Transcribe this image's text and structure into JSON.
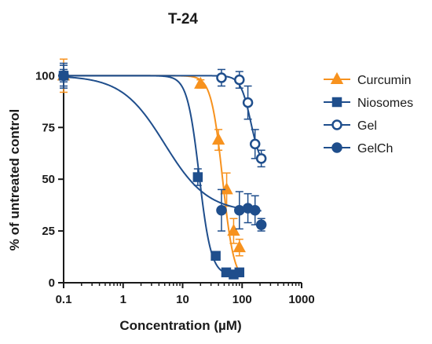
{
  "chart_data": {
    "type": "scatter",
    "title": "T-24",
    "xlabel": "Concentration (µM)",
    "ylabel": "% of untreated control",
    "xscale": "log",
    "xlim": [
      0.1,
      1000
    ],
    "ylim": [
      0,
      110
    ],
    "xticks": [
      0.1,
      1,
      10,
      100,
      1000
    ],
    "xtick_labels": [
      "0.1",
      "1",
      "10",
      "100",
      "1000"
    ],
    "yticks": [
      0,
      25,
      50,
      75,
      100
    ],
    "ytick_labels": [
      "0",
      "25",
      "50",
      "75",
      "100"
    ],
    "legend_position": "right",
    "series": [
      {
        "name": "Curcumin",
        "color": "#f7921e",
        "marker": "triangle",
        "filled": true,
        "x": [
          0.1,
          20,
          40,
          55,
          72,
          90
        ],
        "y": [
          100,
          96,
          69,
          45,
          25,
          17
        ],
        "err": [
          8,
          2,
          5,
          8,
          6,
          4
        ],
        "fit": {
          "top": 100,
          "bottom": 0,
          "ec50": 47,
          "hill": 4.5
        }
      },
      {
        "name": "Niosomes",
        "color": "#1f4e8c",
        "marker": "square",
        "filled": true,
        "x": [
          0.1,
          18,
          36,
          54,
          72,
          90
        ],
        "y": [
          100,
          51,
          13,
          5,
          4,
          5
        ],
        "err": [
          6,
          4,
          1,
          1,
          1,
          1
        ],
        "fit": {
          "top": 100,
          "bottom": 3.5,
          "ec50": 19,
          "hill": 4.3
        }
      },
      {
        "name": "Gel",
        "color": "#1f4e8c",
        "marker": "circle",
        "filled": false,
        "x": [
          0.1,
          45,
          90,
          125,
          165,
          210
        ],
        "y": [
          100,
          99,
          98,
          87,
          67,
          60
        ],
        "err": [
          5,
          4,
          4,
          8,
          7,
          4
        ],
        "fit": {
          "top": 100,
          "bottom": 55,
          "ec50": 140,
          "hill": 5
        }
      },
      {
        "name": "GelCh",
        "color": "#1f4e8c",
        "marker": "circle",
        "filled": true,
        "x": [
          0.1,
          45,
          90,
          125,
          165,
          210
        ],
        "y": [
          100,
          35,
          35,
          36,
          35,
          28
        ],
        "err": [
          3,
          10,
          9,
          7,
          7,
          3
        ],
        "fit": {
          "top": 100,
          "bottom": 34,
          "ec50": 5,
          "hill": 1.2
        }
      }
    ]
  }
}
